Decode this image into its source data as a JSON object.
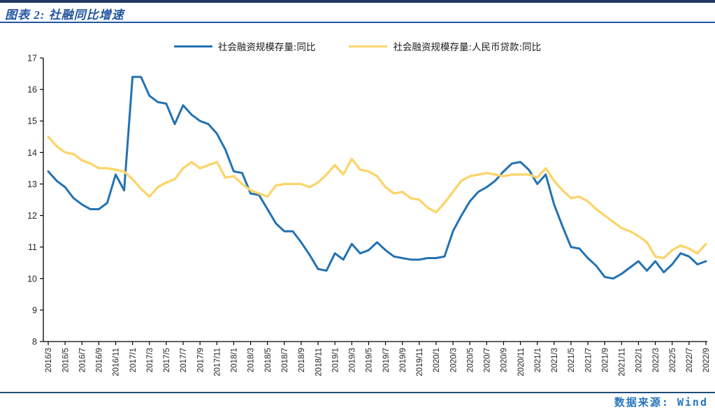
{
  "header": {
    "title": "图表 2: 社融同比增速"
  },
  "footer": {
    "source_label": "数据来源: Wind"
  },
  "colors": {
    "top_bar": "#1F3864",
    "title_text": "#2456A0",
    "title_underline": "#2456A0",
    "footer_rule": "#1F4E79",
    "source_text": "#2676BD",
    "axis_line": "#000000",
    "axis_label": "#262626",
    "series_blue": "#2272B2",
    "series_yellow": "#FBD56A"
  },
  "chart_data": {
    "type": "line",
    "title": "图表 2: 社融同比增速",
    "xlabel": "",
    "ylabel": "",
    "ylim": [
      8,
      17
    ],
    "y_ticks": [
      8,
      9,
      10,
      11,
      12,
      13,
      14,
      15,
      16,
      17
    ],
    "x_tick_step": 2,
    "grid": false,
    "legend_position": "top",
    "x": [
      "2016/3",
      "2016/4",
      "2016/5",
      "2016/6",
      "2016/7",
      "2016/8",
      "2016/9",
      "2016/10",
      "2016/11",
      "2016/12",
      "2017/1",
      "2017/2",
      "2017/3",
      "2017/4",
      "2017/5",
      "2017/6",
      "2017/7",
      "2017/8",
      "2017/9",
      "2017/10",
      "2017/11",
      "2017/12",
      "2018/1",
      "2018/2",
      "2018/3",
      "2018/4",
      "2018/5",
      "2018/6",
      "2018/7",
      "2018/8",
      "2018/9",
      "2018/10",
      "2018/11",
      "2018/12",
      "2019/1",
      "2019/2",
      "2019/3",
      "2019/4",
      "2019/5",
      "2019/6",
      "2019/7",
      "2019/8",
      "2019/9",
      "2019/10",
      "2019/11",
      "2019/12",
      "2020/1",
      "2020/2",
      "2020/3",
      "2020/4",
      "2020/5",
      "2020/6",
      "2020/7",
      "2020/8",
      "2020/9",
      "2020/10",
      "2020/11",
      "2020/12",
      "2021/1",
      "2021/2",
      "2021/3",
      "2021/4",
      "2021/5",
      "2021/6",
      "2021/7",
      "2021/8",
      "2021/9",
      "2021/10",
      "2021/11",
      "2021/12",
      "2022/1",
      "2022/2",
      "2022/3",
      "2022/4",
      "2022/5",
      "2022/6",
      "2022/7",
      "2022/8",
      "2022/9"
    ],
    "series": [
      {
        "name": "社会融资规模存量:同比",
        "color": "#2272B2",
        "values": [
          13.4,
          13.1,
          12.9,
          12.55,
          12.35,
          12.2,
          12.2,
          12.4,
          13.3,
          12.8,
          16.4,
          16.4,
          15.8,
          15.6,
          15.55,
          14.9,
          15.5,
          15.2,
          15.0,
          14.9,
          14.6,
          14.1,
          13.4,
          13.35,
          12.7,
          12.65,
          12.2,
          11.75,
          11.5,
          11.5,
          11.15,
          10.75,
          10.3,
          10.25,
          10.8,
          10.6,
          11.1,
          10.8,
          10.9,
          11.15,
          10.9,
          10.7,
          10.65,
          10.6,
          10.6,
          10.65,
          10.65,
          10.7,
          11.5,
          12.0,
          12.45,
          12.75,
          12.9,
          13.1,
          13.4,
          13.65,
          13.7,
          13.45,
          13.0,
          13.3,
          12.35,
          11.65,
          11.0,
          10.95,
          10.65,
          10.4,
          10.05,
          10.0,
          10.15,
          10.35,
          10.55,
          10.25,
          10.55,
          10.2,
          10.45,
          10.8,
          10.7,
          10.45,
          10.55
        ]
      },
      {
        "name": "社会融资规模存量:人民币贷款:同比",
        "color": "#FBD56A",
        "values": [
          14.5,
          14.2,
          14.0,
          13.95,
          13.75,
          13.65,
          13.5,
          13.5,
          13.45,
          13.4,
          13.15,
          12.85,
          12.6,
          12.9,
          13.05,
          13.15,
          13.5,
          13.7,
          13.5,
          13.6,
          13.7,
          13.2,
          13.25,
          13.0,
          12.8,
          12.7,
          12.6,
          12.95,
          13.0,
          13.0,
          13.0,
          12.9,
          13.05,
          13.3,
          13.6,
          13.3,
          13.8,
          13.45,
          13.4,
          13.25,
          12.9,
          12.7,
          12.75,
          12.55,
          12.5,
          12.25,
          12.1,
          12.4,
          12.75,
          13.1,
          13.25,
          13.3,
          13.35,
          13.3,
          13.25,
          13.3,
          13.3,
          13.3,
          13.2,
          13.5,
          13.1,
          12.8,
          12.55,
          12.6,
          12.45,
          12.2,
          12.0,
          11.8,
          11.6,
          11.5,
          11.35,
          11.15,
          10.7,
          10.65,
          10.9,
          11.05,
          10.95,
          10.8,
          11.1
        ]
      }
    ]
  }
}
